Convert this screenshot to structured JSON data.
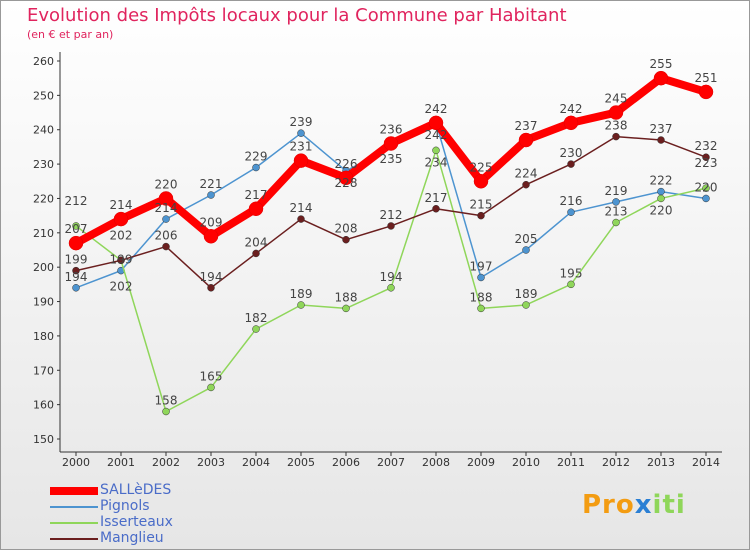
{
  "chart_data": {
    "type": "line",
    "title": "Evolution des Impôts locaux pour la Commune par Habitant",
    "subtitle": "(en € et par an)",
    "x": [
      "2000",
      "2001",
      "2002",
      "2003",
      "2004",
      "2005",
      "2006",
      "2007",
      "2008",
      "2009",
      "2010",
      "2011",
      "2012",
      "2013",
      "2014"
    ],
    "ylim": [
      150,
      260
    ],
    "yticks": [
      150,
      160,
      170,
      180,
      190,
      200,
      210,
      220,
      230,
      240,
      250,
      260
    ],
    "grid": false,
    "legend_placement": "bottom-left",
    "series": [
      {
        "name": "SALLèDES",
        "color": "#ff0000",
        "values": [
          207,
          214,
          220,
          209,
          217,
          231,
          226,
          236,
          242,
          225,
          237,
          242,
          245,
          255,
          251
        ]
      },
      {
        "name": "Pignols",
        "color": "#4d94d0",
        "values": [
          194,
          199,
          214,
          221,
          229,
          239,
          228,
          235,
          242,
          197,
          205,
          216,
          219,
          222,
          220
        ]
      },
      {
        "name": "Isserteaux",
        "color": "#8fd65a",
        "values": [
          212,
          202,
          158,
          165,
          182,
          189,
          188,
          194,
          234,
          188,
          189,
          195,
          213,
          220,
          223
        ]
      },
      {
        "name": "Manglieu",
        "color": "#6b1f1f",
        "values": [
          199,
          202,
          206,
          194,
          204,
          214,
          208,
          212,
          217,
          215,
          224,
          230,
          238,
          237,
          232
        ]
      }
    ]
  },
  "logo": "Proxiti"
}
